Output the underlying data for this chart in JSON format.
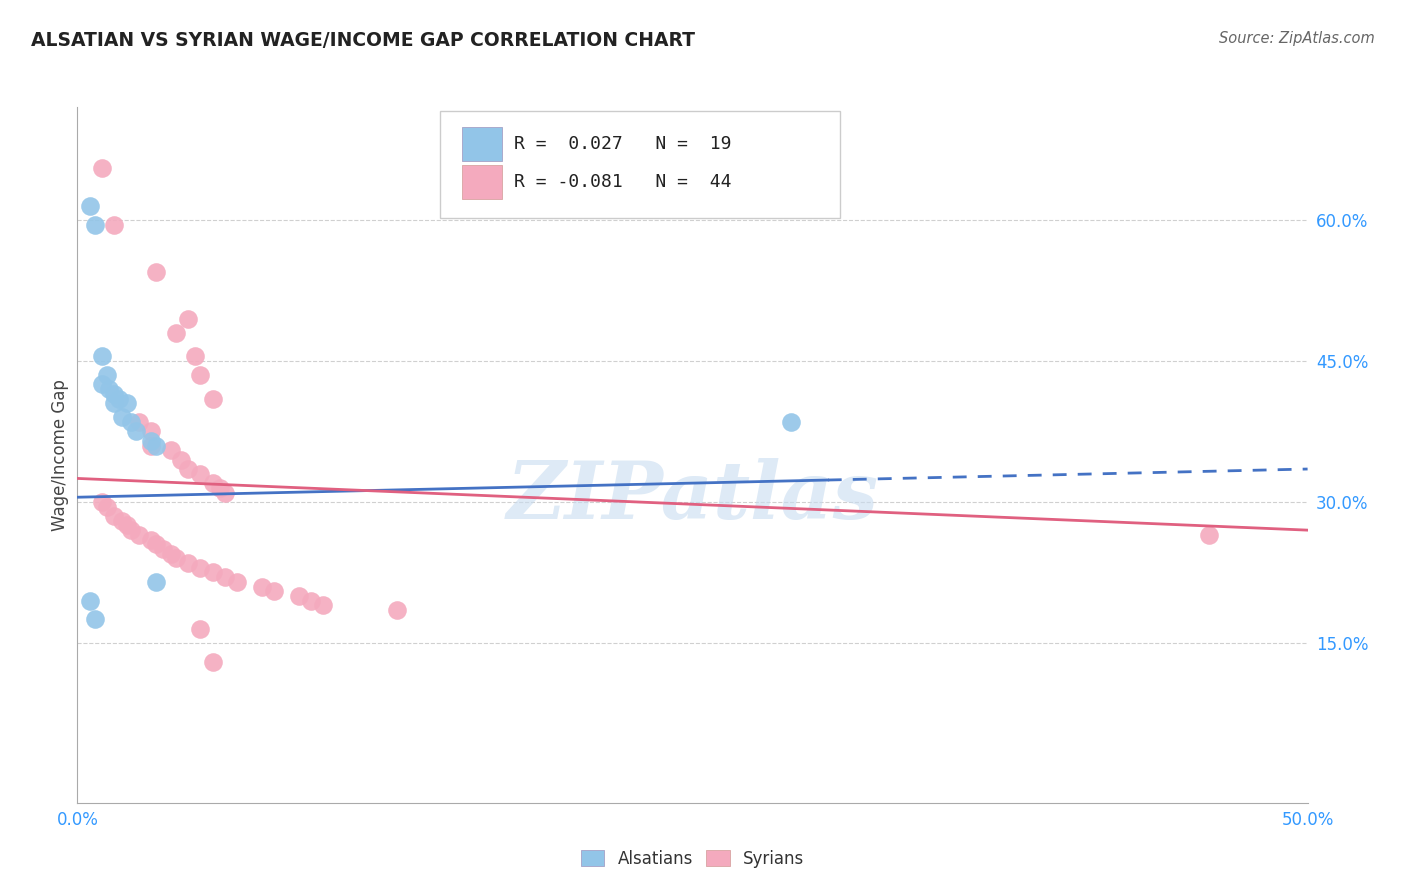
{
  "title": "ALSATIAN VS SYRIAN WAGE/INCOME GAP CORRELATION CHART",
  "source": "Source: ZipAtlas.com",
  "ylabel": "Wage/Income Gap",
  "xlim": [
    0.0,
    0.5
  ],
  "ylim": [
    -0.02,
    0.72
  ],
  "ytick_positions": [
    0.15,
    0.3,
    0.45,
    0.6
  ],
  "ytick_labels": [
    "15.0%",
    "30.0%",
    "45.0%",
    "60.0%"
  ],
  "watermark": "ZIPatlas",
  "legend_R_blue": "0.027",
  "legend_N_blue": "19",
  "legend_R_pink": "-0.081",
  "legend_N_pink": "44",
  "blue_color": "#92C5E8",
  "pink_color": "#F4AABE",
  "line_blue": "#4472C4",
  "line_pink": "#E06080",
  "blue_points": [
    [
      0.005,
      0.615
    ],
    [
      0.007,
      0.595
    ],
    [
      0.01,
      0.455
    ],
    [
      0.01,
      0.425
    ],
    [
      0.012,
      0.435
    ],
    [
      0.013,
      0.42
    ],
    [
      0.015,
      0.415
    ],
    [
      0.015,
      0.405
    ],
    [
      0.017,
      0.41
    ],
    [
      0.018,
      0.39
    ],
    [
      0.02,
      0.405
    ],
    [
      0.022,
      0.385
    ],
    [
      0.024,
      0.375
    ],
    [
      0.03,
      0.365
    ],
    [
      0.032,
      0.36
    ],
    [
      0.005,
      0.195
    ],
    [
      0.007,
      0.175
    ],
    [
      0.032,
      0.215
    ],
    [
      0.29,
      0.385
    ]
  ],
  "pink_points": [
    [
      0.01,
      0.655
    ],
    [
      0.015,
      0.595
    ],
    [
      0.032,
      0.545
    ],
    [
      0.045,
      0.495
    ],
    [
      0.04,
      0.48
    ],
    [
      0.048,
      0.455
    ],
    [
      0.05,
      0.435
    ],
    [
      0.055,
      0.41
    ],
    [
      0.025,
      0.385
    ],
    [
      0.03,
      0.375
    ],
    [
      0.03,
      0.36
    ],
    [
      0.038,
      0.355
    ],
    [
      0.042,
      0.345
    ],
    [
      0.045,
      0.335
    ],
    [
      0.05,
      0.33
    ],
    [
      0.055,
      0.32
    ],
    [
      0.058,
      0.315
    ],
    [
      0.06,
      0.31
    ],
    [
      0.01,
      0.3
    ],
    [
      0.012,
      0.295
    ],
    [
      0.015,
      0.285
    ],
    [
      0.018,
      0.28
    ],
    [
      0.02,
      0.275
    ],
    [
      0.022,
      0.27
    ],
    [
      0.025,
      0.265
    ],
    [
      0.03,
      0.26
    ],
    [
      0.032,
      0.255
    ],
    [
      0.035,
      0.25
    ],
    [
      0.038,
      0.245
    ],
    [
      0.04,
      0.24
    ],
    [
      0.045,
      0.235
    ],
    [
      0.05,
      0.23
    ],
    [
      0.055,
      0.225
    ],
    [
      0.06,
      0.22
    ],
    [
      0.065,
      0.215
    ],
    [
      0.075,
      0.21
    ],
    [
      0.08,
      0.205
    ],
    [
      0.09,
      0.2
    ],
    [
      0.095,
      0.195
    ],
    [
      0.1,
      0.19
    ],
    [
      0.13,
      0.185
    ],
    [
      0.05,
      0.165
    ],
    [
      0.46,
      0.265
    ],
    [
      0.055,
      0.13
    ]
  ],
  "blue_line_y_start": 0.305,
  "blue_line_y_end": 0.335,
  "blue_line_solid_x_end": 0.305,
  "pink_line_y_start": 0.325,
  "pink_line_y_end": 0.27,
  "grid_color": "#D0D0D0",
  "bg_color": "#FFFFFF"
}
